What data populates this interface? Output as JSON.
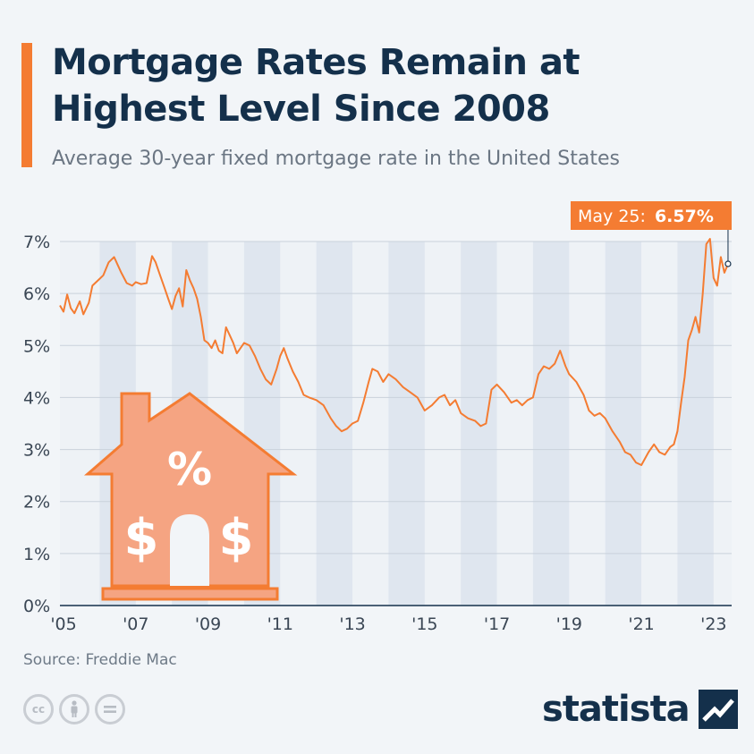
{
  "header": {
    "title": "Mortgage Rates Remain at Highest Level Since 2008",
    "subtitle": "Average 30-year fixed mortgage rate in the United States"
  },
  "callout": {
    "date_label": "May 25:",
    "value_label": "6.57%"
  },
  "footer": {
    "source": "Source: Freddie Mac",
    "license_icons": [
      "cc-icon",
      "attribution-icon",
      "no-derivatives-icon"
    ],
    "brand": "statista"
  },
  "colors": {
    "line": "#f47c32",
    "accent": "#f47c32",
    "title": "#14304b",
    "band": "#dfe6ef",
    "house_fill": "#f5a482",
    "house_stroke": "#f47c32"
  },
  "chart_data": {
    "type": "line",
    "title": "Mortgage Rates Remain at Highest Level Since 2008",
    "subtitle": "Average 30-year fixed mortgage rate in the United States",
    "xlabel": "",
    "ylabel": "",
    "ylim": [
      0,
      7
    ],
    "xlim": [
      2004.9,
      2023.5
    ],
    "y_ticks": [
      0,
      1,
      2,
      3,
      4,
      5,
      6,
      7
    ],
    "y_tick_labels": [
      "0%",
      "1%",
      "2%",
      "3%",
      "4%",
      "5%",
      "6%",
      "7%"
    ],
    "x_ticks": [
      2005,
      2007,
      2009,
      2011,
      2013,
      2015,
      2017,
      2019,
      2021,
      2023
    ],
    "x_tick_labels": [
      "'05",
      "'07",
      "'09",
      "'11",
      "'13",
      "'15",
      "'17",
      "'19",
      "'21",
      "'23"
    ],
    "grid": true,
    "legend": "none",
    "annotation": {
      "x": 2023.4,
      "y": 6.57,
      "text": "May 25: 6.57%"
    },
    "series": [
      {
        "x": [
          2004.9,
          2005.0,
          2005.1,
          2005.2,
          2005.3,
          2005.45,
          2005.55,
          2005.7,
          2005.8,
          2005.95,
          2006.1,
          2006.25,
          2006.4,
          2006.5,
          2006.6,
          2006.75,
          2006.9,
          2007.0,
          2007.15,
          2007.3,
          2007.45,
          2007.55,
          2007.65,
          2007.8,
          2007.9,
          2008.0,
          2008.1,
          2008.2,
          2008.3,
          2008.4,
          2008.5,
          2008.6,
          2008.7,
          2008.8,
          2008.9,
          2009.0,
          2009.1,
          2009.2,
          2009.3,
          2009.4,
          2009.5,
          2009.6,
          2009.7,
          2009.8,
          2009.9,
          2010.0,
          2010.15,
          2010.3,
          2010.45,
          2010.6,
          2010.75,
          2010.9,
          2011.0,
          2011.1,
          2011.2,
          2011.35,
          2011.5,
          2011.65,
          2011.8,
          2012.0,
          2012.2,
          2012.4,
          2012.55,
          2012.7,
          2012.85,
          2013.0,
          2013.15,
          2013.3,
          2013.45,
          2013.55,
          2013.7,
          2013.85,
          2014.0,
          2014.2,
          2014.4,
          2014.6,
          2014.8,
          2015.0,
          2015.2,
          2015.4,
          2015.55,
          2015.7,
          2015.85,
          2016.0,
          2016.2,
          2016.4,
          2016.55,
          2016.7,
          2016.85,
          2017.0,
          2017.2,
          2017.4,
          2017.55,
          2017.7,
          2017.85,
          2018.0,
          2018.15,
          2018.3,
          2018.45,
          2018.6,
          2018.75,
          2018.9,
          2019.0,
          2019.2,
          2019.4,
          2019.55,
          2019.7,
          2019.85,
          2020.0,
          2020.2,
          2020.4,
          2020.55,
          2020.7,
          2020.85,
          2021.0,
          2021.2,
          2021.35,
          2021.5,
          2021.65,
          2021.8,
          2021.9,
          2022.0,
          2022.1,
          2022.2,
          2022.3,
          2022.4,
          2022.5,
          2022.6,
          2022.7,
          2022.8,
          2022.9,
          2023.0,
          2023.1,
          2023.2,
          2023.3,
          2023.4
        ],
        "values": [
          5.77,
          5.65,
          5.98,
          5.72,
          5.62,
          5.85,
          5.6,
          5.82,
          6.15,
          6.25,
          6.35,
          6.6,
          6.7,
          6.55,
          6.4,
          6.2,
          6.15,
          6.22,
          6.18,
          6.2,
          6.72,
          6.6,
          6.4,
          6.1,
          5.9,
          5.7,
          5.95,
          6.1,
          5.75,
          6.45,
          6.25,
          6.1,
          5.9,
          5.55,
          5.1,
          5.05,
          4.95,
          5.1,
          4.9,
          4.85,
          5.35,
          5.2,
          5.05,
          4.85,
          4.95,
          5.05,
          5.0,
          4.8,
          4.55,
          4.35,
          4.25,
          4.55,
          4.8,
          4.95,
          4.75,
          4.5,
          4.3,
          4.05,
          4.0,
          3.95,
          3.85,
          3.6,
          3.45,
          3.35,
          3.4,
          3.5,
          3.55,
          3.9,
          4.3,
          4.55,
          4.5,
          4.3,
          4.45,
          4.35,
          4.2,
          4.1,
          4.0,
          3.75,
          3.85,
          4.0,
          4.05,
          3.85,
          3.95,
          3.7,
          3.6,
          3.55,
          3.45,
          3.5,
          4.15,
          4.25,
          4.1,
          3.9,
          3.95,
          3.85,
          3.95,
          4.0,
          4.45,
          4.6,
          4.55,
          4.65,
          4.9,
          4.6,
          4.45,
          4.3,
          4.05,
          3.75,
          3.65,
          3.7,
          3.6,
          3.35,
          3.15,
          2.95,
          2.9,
          2.75,
          2.7,
          2.95,
          3.1,
          2.95,
          2.9,
          3.05,
          3.1,
          3.35,
          3.9,
          4.4,
          5.1,
          5.3,
          5.55,
          5.25,
          6.0,
          6.95,
          7.05,
          6.3,
          6.15,
          6.7,
          6.4,
          6.57
        ]
      }
    ]
  }
}
